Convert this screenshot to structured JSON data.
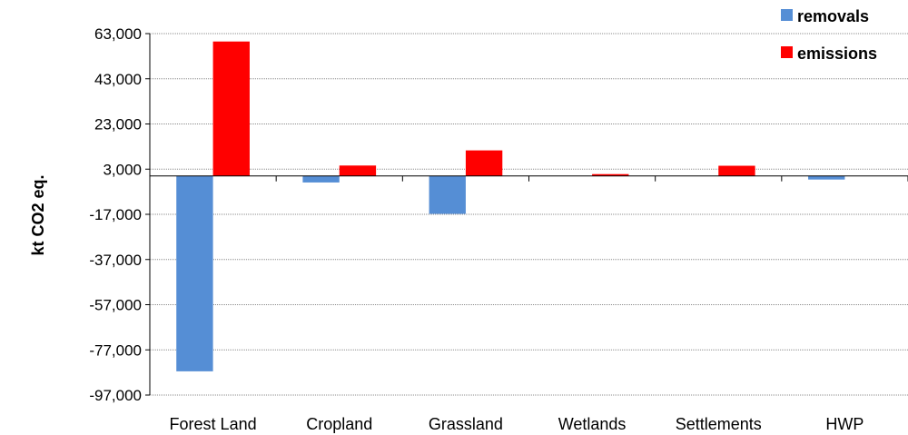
{
  "chart_data": {
    "type": "bar",
    "title": "",
    "xlabel": "",
    "ylabel": "kt CO2 eq.",
    "categories": [
      "Forest Land",
      "Cropland",
      "Grassland",
      "Wetlands",
      "Settlements",
      "HWP"
    ],
    "series": [
      {
        "name": "removals",
        "color": "#558ed5",
        "values": [
          -86500,
          -2900,
          -16800,
          0,
          0,
          -1600
        ]
      },
      {
        "name": "emissions",
        "color": "#ff0000",
        "values": [
          59500,
          4600,
          11300,
          800,
          4500,
          0
        ]
      }
    ],
    "yticks": [
      63000,
      43000,
      23000,
      3000,
      -17000,
      -37000,
      -57000,
      -77000,
      -97000
    ],
    "ytick_labels": [
      "63,000",
      "43,000",
      "23,000",
      "3,000",
      "-17,000",
      "-37,000",
      "-57,000",
      "-77,000",
      "-97,000"
    ],
    "ylim": [
      -97000,
      63000
    ],
    "grid": true,
    "legend_position": "top-right"
  }
}
